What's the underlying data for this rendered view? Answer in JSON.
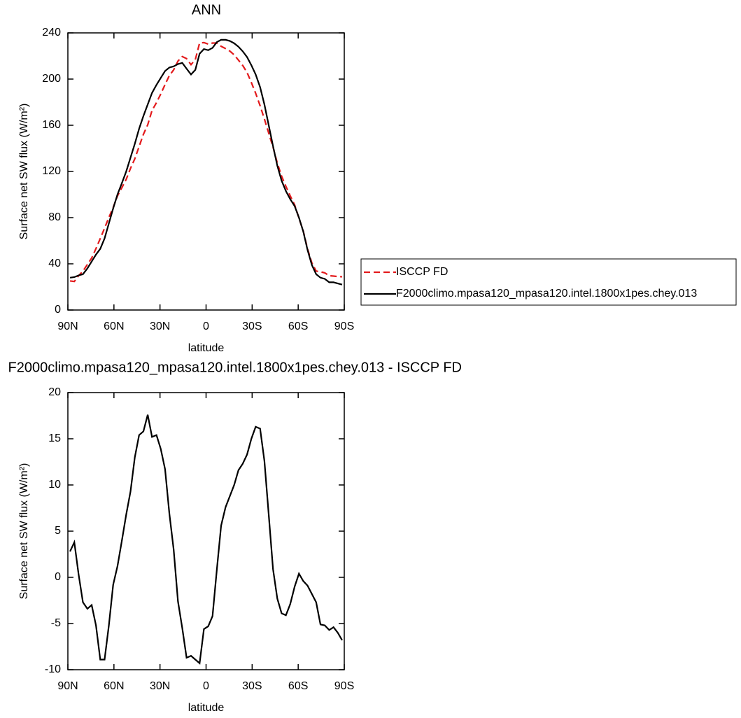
{
  "chart_data": [
    {
      "type": "line",
      "title": "ANN",
      "x_label": "latitude",
      "y_label": "Surface net SW flux (W/m²)",
      "x": [
        88.6,
        85.8,
        83.0,
        80.2,
        77.3,
        74.5,
        71.7,
        68.9,
        66.1,
        63.3,
        60.5,
        57.7,
        54.8,
        52.0,
        49.2,
        46.4,
        43.6,
        40.8,
        38.0,
        35.2,
        32.3,
        29.5,
        26.7,
        23.9,
        21.1,
        18.3,
        15.5,
        12.7,
        9.8,
        7.0,
        4.2,
        1.4,
        -1.4,
        -4.2,
        -7.0,
        -9.8,
        -12.7,
        -15.5,
        -18.3,
        -21.1,
        -23.9,
        -26.7,
        -29.5,
        -32.3,
        -35.2,
        -38.0,
        -40.8,
        -43.6,
        -46.4,
        -49.2,
        -52.0,
        -54.8,
        -57.7,
        -60.5,
        -63.3,
        -66.1,
        -68.9,
        -71.7,
        -74.5,
        -77.3,
        -80.2,
        -83.0,
        -85.8,
        -88.6
      ],
      "series": [
        {
          "name": "ISCCP FD",
          "color": "#e31a1c",
          "line_style": "dashed",
          "values": [
            25.2,
            24.7,
            29.7,
            33.7,
            39.4,
            45,
            53.2,
            61.9,
            70.9,
            80.2,
            88.8,
            98.8,
            106,
            113.2,
            122.7,
            131,
            141.6,
            152.2,
            160.4,
            172.8,
            179.6,
            187.1,
            195.3,
            203.1,
            208,
            215.6,
            219.5,
            217.7,
            212.5,
            216.9,
            231.3,
            231.6,
            230.3,
            231.2,
            231.2,
            228.4,
            226.4,
            224.2,
            221,
            216.4,
            211.7,
            205.7,
            197,
            187.7,
            176.9,
            165.4,
            153.2,
            141.1,
            127.3,
            115.9,
            107.1,
            98.9,
            91,
            79.6,
            68.4,
            52.9,
            40.8,
            33.7,
            33.1,
            32.2,
            29.7,
            29.4,
            29,
            28.8
          ]
        },
        {
          "name": "F2000climo.mpasa120_mpasa120.intel.1800x1pes.chey.013",
          "color": "#000000",
          "line_style": "solid",
          "values": [
            28,
            28.5,
            30,
            31,
            36,
            42,
            48,
            53,
            62,
            75,
            88,
            100,
            110,
            120,
            132,
            144,
            157,
            168,
            178,
            188,
            195,
            201,
            207,
            210,
            211,
            213,
            214,
            209,
            204,
            208,
            222,
            226,
            225,
            227,
            232,
            234,
            234,
            233,
            231,
            228,
            224,
            219,
            212,
            204,
            193,
            178,
            160,
            142,
            125,
            112,
            103,
            96,
            90,
            80,
            68,
            52,
            39,
            31,
            28,
            27,
            24,
            24,
            23,
            22
          ]
        }
      ],
      "xlim": [
        90,
        -90
      ],
      "xticks": [
        {
          "value": 90,
          "label": "90N"
        },
        {
          "value": 60,
          "label": "60N"
        },
        {
          "value": 30,
          "label": "30N"
        },
        0,
        {
          "value": -30,
          "label": "30S"
        },
        {
          "value": -60,
          "label": "60S"
        },
        {
          "value": -90,
          "label": "90S"
        }
      ],
      "ylim": [
        0,
        240
      ],
      "yticks": [
        0,
        40,
        80,
        120,
        160,
        200,
        240
      ],
      "legend": "right"
    },
    {
      "type": "line",
      "title": "F2000climo.mpasa120_mpasa120.intel.1800x1pes.chey.013 - ISCCP FD",
      "x_label": "latitude",
      "y_label": "Surface net SW flux (W/m²)",
      "x": [
        88.6,
        85.8,
        83.0,
        80.2,
        77.3,
        74.5,
        71.7,
        68.9,
        66.1,
        63.3,
        60.5,
        57.7,
        54.8,
        52.0,
        49.2,
        46.4,
        43.6,
        40.8,
        38.0,
        35.2,
        32.3,
        29.5,
        26.7,
        23.9,
        21.1,
        18.3,
        15.5,
        12.7,
        9.8,
        7.0,
        4.2,
        1.4,
        -1.4,
        -4.2,
        -7.0,
        -9.8,
        -12.7,
        -15.5,
        -18.3,
        -21.1,
        -23.9,
        -26.7,
        -29.5,
        -32.3,
        -35.2,
        -38.0,
        -40.8,
        -43.6,
        -46.4,
        -49.2,
        -52.0,
        -54.8,
        -57.7,
        -60.5,
        -63.3,
        -66.1,
        -68.9,
        -71.7,
        -74.5,
        -77.3,
        -80.2,
        -83.0,
        -85.8,
        -88.6
      ],
      "values": [
        2.8,
        3.8,
        0.3,
        -2.7,
        -3.4,
        -3.0,
        -5.2,
        -8.9,
        -8.9,
        -5.2,
        -0.8,
        1.2,
        4.0,
        6.8,
        9.3,
        13.0,
        15.4,
        15.8,
        17.6,
        15.2,
        15.4,
        13.9,
        11.7,
        6.9,
        3.0,
        -2.6,
        -5.5,
        -8.7,
        -8.5,
        -8.9,
        -9.3,
        -5.6,
        -5.3,
        -4.2,
        0.8,
        5.6,
        7.6,
        8.8,
        10.0,
        11.6,
        12.3,
        13.3,
        15.0,
        16.3,
        16.1,
        12.6,
        6.8,
        0.9,
        -2.3,
        -3.9,
        -4.1,
        -2.9,
        -1.0,
        0.4,
        -0.4,
        -0.9,
        -1.8,
        -2.7,
        -5.1,
        -5.2,
        -5.7,
        -5.4,
        -6.0,
        -6.8
      ],
      "color": "#000000",
      "xlim": [
        90,
        -90
      ],
      "xticks": [
        {
          "value": 90,
          "label": "90N"
        },
        {
          "value": 60,
          "label": "60N"
        },
        {
          "value": 30,
          "label": "30N"
        },
        0,
        {
          "value": -30,
          "label": "30S"
        },
        {
          "value": -60,
          "label": "60S"
        },
        {
          "value": -90,
          "label": "90S"
        }
      ],
      "ylim": [
        -10,
        20
      ],
      "yticks": [
        -10,
        -5,
        0,
        5,
        10,
        15,
        20
      ]
    }
  ]
}
